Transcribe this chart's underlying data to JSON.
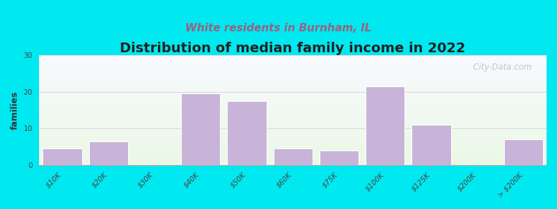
{
  "title": "Distribution of median family income in 2022",
  "subtitle": "White residents in Burnham, IL",
  "ylabel": "families",
  "categories": [
    "$10K",
    "$20K",
    "$30K",
    "$40K",
    "$50K",
    "$60K",
    "$75K",
    "$100K",
    "$125K",
    "$200K",
    "> $200K"
  ],
  "values": [
    4.5,
    6.5,
    0,
    19.5,
    17.5,
    4.5,
    4.0,
    21.5,
    11.0,
    0,
    7.0
  ],
  "bar_color": "#c8b4d8",
  "background_outer": "#00e8f0",
  "title_fontsize": 14,
  "subtitle_fontsize": 11,
  "subtitle_color": "#9b6080",
  "ylabel_fontsize": 9,
  "tick_fontsize": 7.5,
  "ylim": [
    0,
    30
  ],
  "yticks": [
    0,
    10,
    20,
    30
  ],
  "watermark": "  City-Data.com",
  "watermark_color": "#b0bec5",
  "grid_color": "#d8d8d8"
}
